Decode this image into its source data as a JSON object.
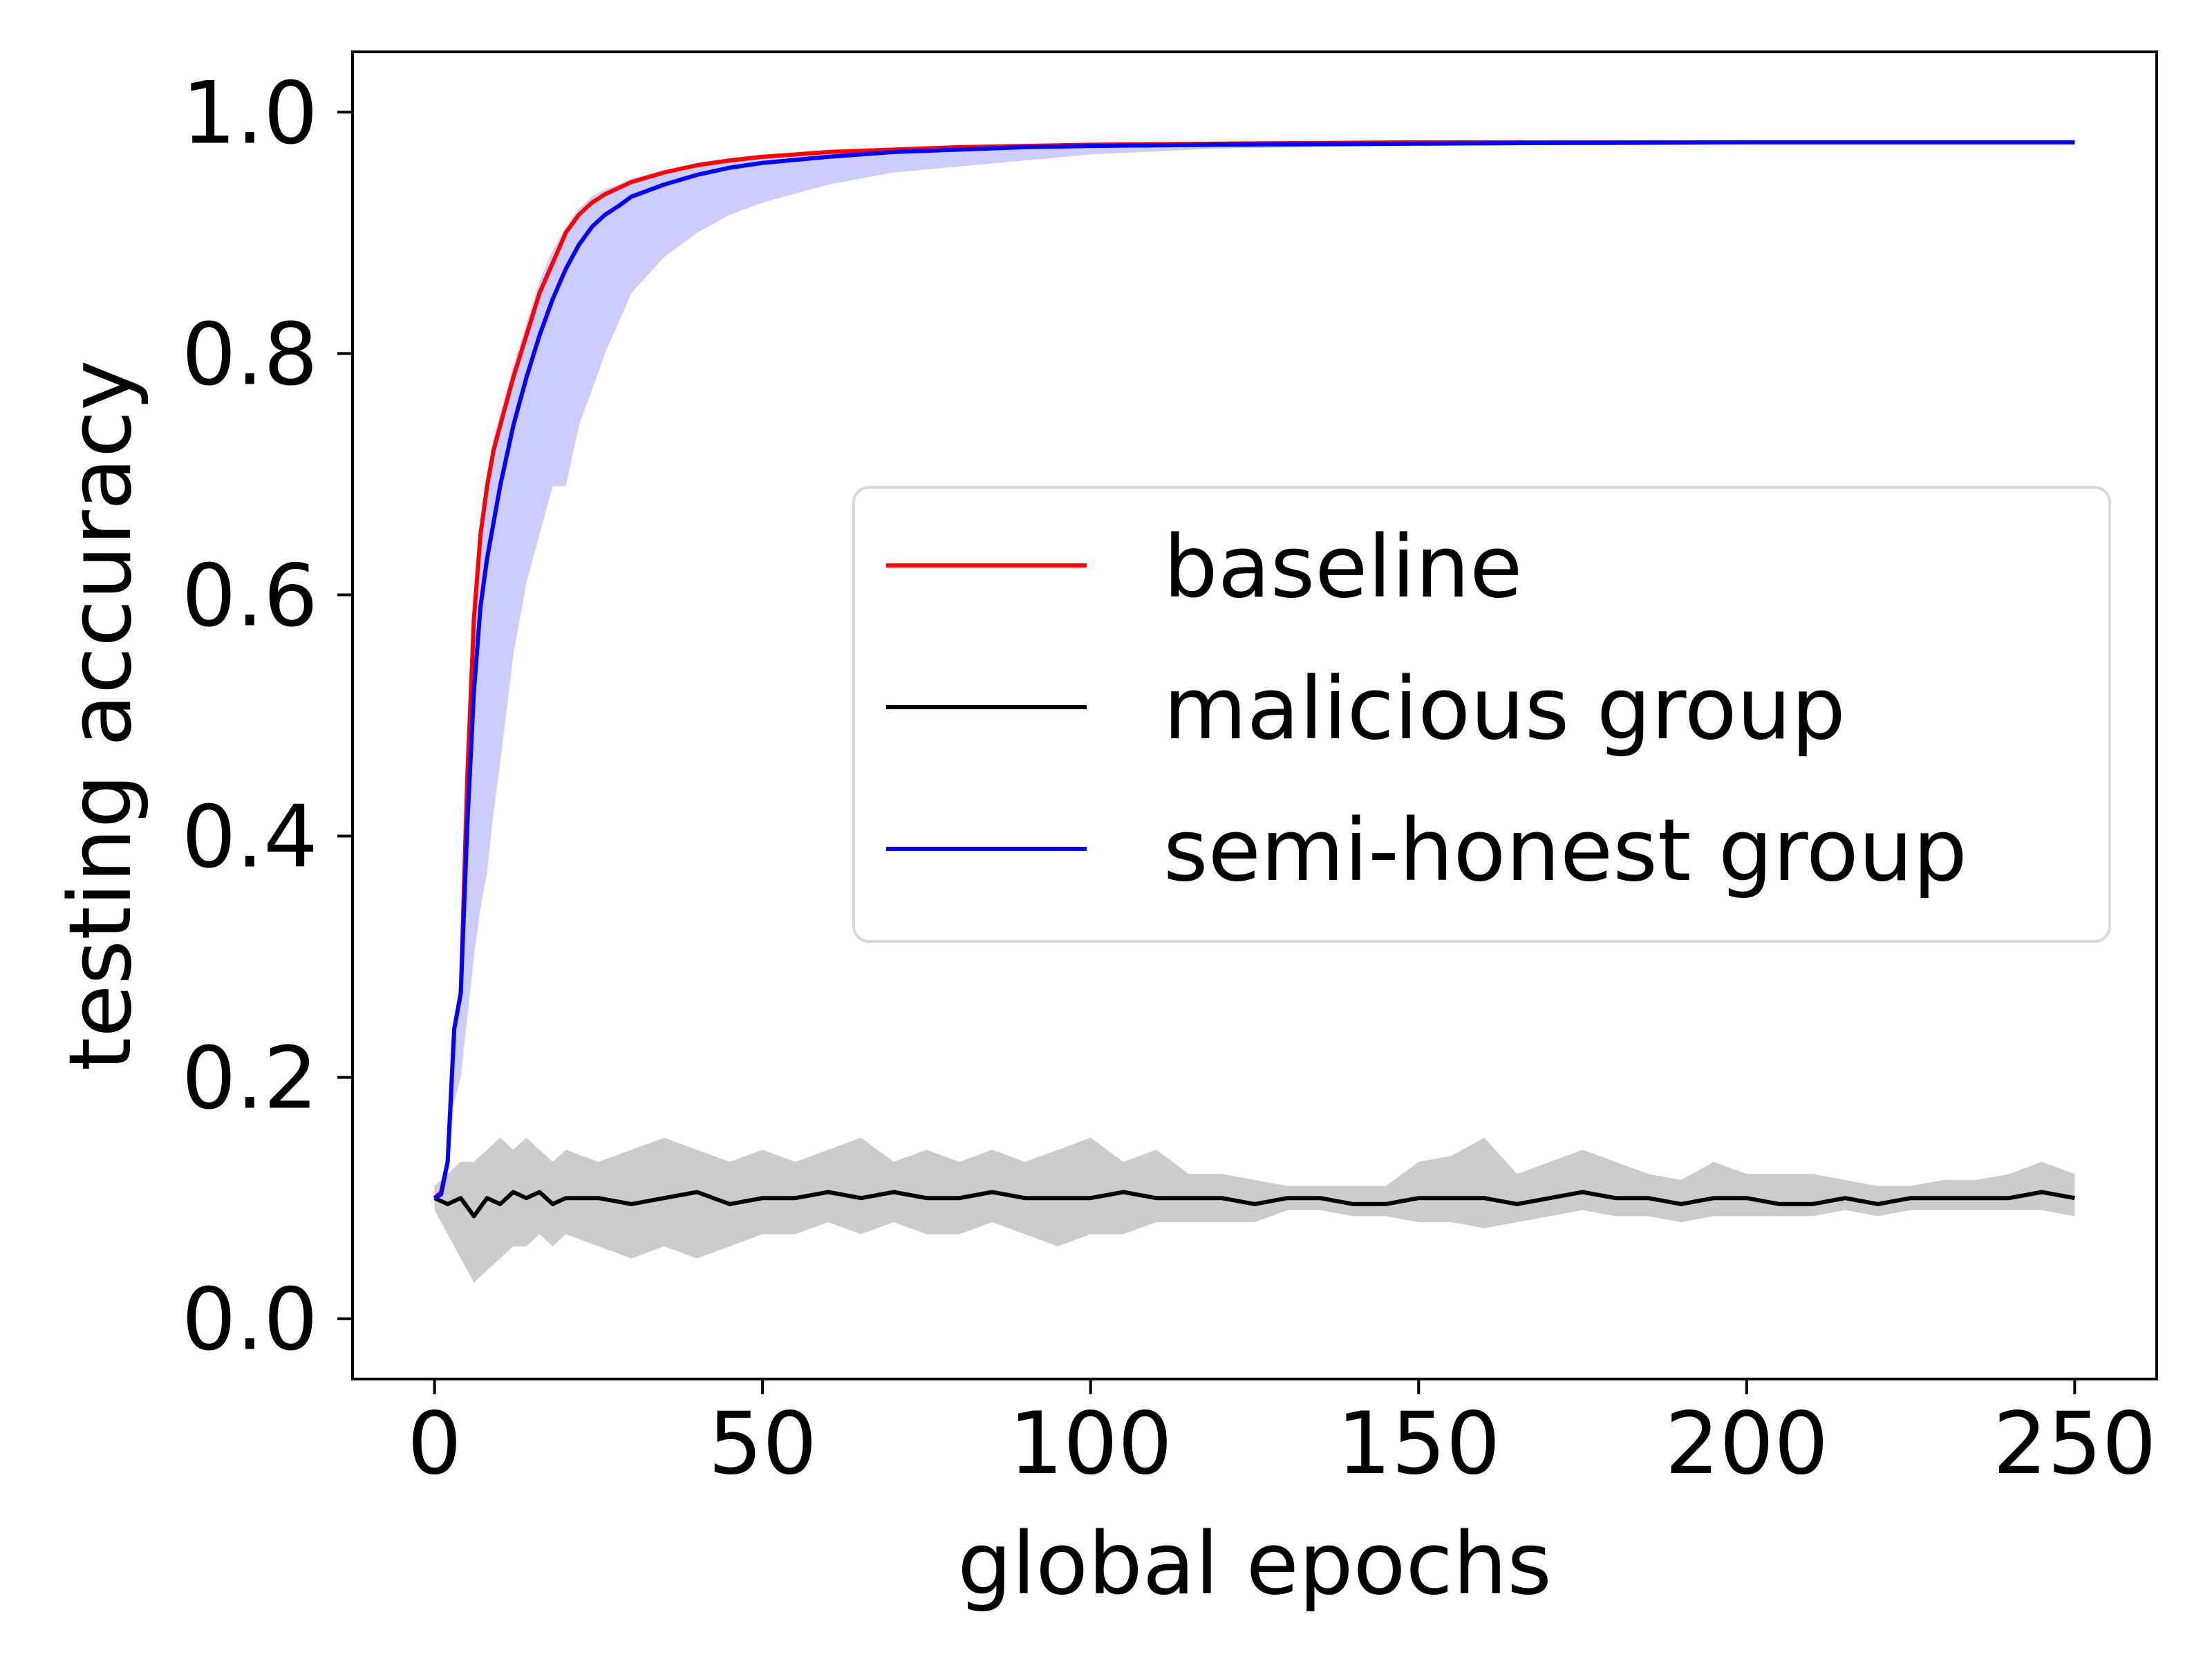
{
  "chart_data": {
    "type": "line",
    "title": "",
    "xlabel": "global epochs",
    "ylabel": "testing accuracy",
    "xlim": [
      -12.5,
      262.5
    ],
    "ylim": [
      -0.05,
      1.05
    ],
    "xticks": [
      0,
      50,
      100,
      150,
      200,
      250
    ],
    "yticks": [
      0.0,
      0.2,
      0.4,
      0.6,
      0.8,
      1.0
    ],
    "xtick_labels": [
      "0",
      "50",
      "100",
      "150",
      "200",
      "250"
    ],
    "ytick_labels": [
      "0.0",
      "0.2",
      "0.4",
      "0.6",
      "0.8",
      "1.0"
    ],
    "grid": false,
    "legend": {
      "location": "center-right",
      "entries": [
        "baseline",
        "malicious group",
        "semi-honest group"
      ]
    },
    "series": [
      {
        "name": "baseline",
        "color": "#ff0000",
        "x": [
          0,
          1,
          2,
          3,
          4,
          5,
          6,
          7,
          8,
          9,
          10,
          12,
          14,
          16,
          18,
          20,
          22,
          24,
          26,
          28,
          30,
          35,
          40,
          45,
          50,
          60,
          70,
          80,
          90,
          100,
          120,
          150,
          200,
          250
        ],
        "y": [
          0.1,
          0.105,
          0.13,
          0.24,
          0.27,
          0.45,
          0.58,
          0.65,
          0.69,
          0.72,
          0.74,
          0.78,
          0.815,
          0.85,
          0.875,
          0.9,
          0.915,
          0.925,
          0.932,
          0.937,
          0.942,
          0.95,
          0.956,
          0.96,
          0.963,
          0.967,
          0.969,
          0.971,
          0.972,
          0.973,
          0.974,
          0.975,
          0.975,
          0.975
        ]
      },
      {
        "name": "malicious group",
        "color": "#000000",
        "band_color": "#cccccc",
        "x": [
          0,
          2,
          4,
          6,
          8,
          10,
          12,
          14,
          16,
          18,
          20,
          25,
          30,
          35,
          40,
          45,
          50,
          55,
          60,
          65,
          70,
          75,
          80,
          85,
          90,
          95,
          100,
          105,
          110,
          115,
          120,
          125,
          130,
          135,
          140,
          145,
          150,
          155,
          160,
          165,
          170,
          175,
          180,
          185,
          190,
          195,
          200,
          205,
          210,
          215,
          220,
          225,
          230,
          235,
          240,
          245,
          250
        ],
        "y": [
          0.1,
          0.095,
          0.1,
          0.085,
          0.1,
          0.095,
          0.105,
          0.1,
          0.105,
          0.095,
          0.1,
          0.1,
          0.095,
          0.1,
          0.105,
          0.095,
          0.1,
          0.1,
          0.105,
          0.1,
          0.105,
          0.1,
          0.1,
          0.105,
          0.1,
          0.1,
          0.1,
          0.105,
          0.1,
          0.1,
          0.1,
          0.095,
          0.1,
          0.1,
          0.095,
          0.095,
          0.1,
          0.1,
          0.1,
          0.095,
          0.1,
          0.105,
          0.1,
          0.1,
          0.095,
          0.1,
          0.1,
          0.095,
          0.095,
          0.1,
          0.095,
          0.1,
          0.1,
          0.1,
          0.1,
          0.105,
          0.1
        ],
        "band_lower": [
          0.09,
          0.07,
          0.05,
          0.03,
          0.04,
          0.05,
          0.06,
          0.06,
          0.07,
          0.06,
          0.07,
          0.06,
          0.05,
          0.06,
          0.05,
          0.06,
          0.07,
          0.07,
          0.08,
          0.07,
          0.08,
          0.07,
          0.07,
          0.08,
          0.07,
          0.06,
          0.07,
          0.07,
          0.08,
          0.08,
          0.08,
          0.08,
          0.09,
          0.09,
          0.085,
          0.085,
          0.08,
          0.08,
          0.075,
          0.08,
          0.085,
          0.09,
          0.085,
          0.085,
          0.08,
          0.085,
          0.085,
          0.085,
          0.085,
          0.09,
          0.085,
          0.09,
          0.09,
          0.09,
          0.09,
          0.09,
          0.085
        ],
        "band_upper": [
          0.11,
          0.12,
          0.13,
          0.13,
          0.14,
          0.15,
          0.14,
          0.15,
          0.14,
          0.13,
          0.14,
          0.13,
          0.14,
          0.15,
          0.14,
          0.13,
          0.14,
          0.13,
          0.14,
          0.15,
          0.13,
          0.14,
          0.13,
          0.14,
          0.13,
          0.14,
          0.15,
          0.13,
          0.14,
          0.12,
          0.12,
          0.115,
          0.11,
          0.11,
          0.11,
          0.11,
          0.13,
          0.135,
          0.15,
          0.12,
          0.13,
          0.14,
          0.13,
          0.12,
          0.115,
          0.13,
          0.12,
          0.12,
          0.12,
          0.115,
          0.11,
          0.11,
          0.115,
          0.115,
          0.12,
          0.13,
          0.12
        ]
      },
      {
        "name": "semi-honest group",
        "color": "#0000ff",
        "band_color": "#ccccff",
        "x": [
          0,
          1,
          2,
          3,
          4,
          5,
          6,
          7,
          8,
          9,
          10,
          12,
          14,
          16,
          18,
          20,
          22,
          24,
          26,
          28,
          30,
          35,
          40,
          45,
          50,
          60,
          70,
          80,
          90,
          100,
          120,
          150,
          200,
          250
        ],
        "y": [
          0.1,
          0.103,
          0.13,
          0.24,
          0.27,
          0.41,
          0.52,
          0.59,
          0.63,
          0.66,
          0.69,
          0.74,
          0.78,
          0.815,
          0.845,
          0.87,
          0.89,
          0.905,
          0.915,
          0.922,
          0.93,
          0.94,
          0.948,
          0.954,
          0.958,
          0.963,
          0.967,
          0.969,
          0.971,
          0.972,
          0.973,
          0.974,
          0.975,
          0.975
        ],
        "band_lower": [
          0.095,
          0.1,
          0.12,
          0.18,
          0.2,
          0.25,
          0.3,
          0.34,
          0.37,
          0.42,
          0.46,
          0.55,
          0.61,
          0.65,
          0.69,
          0.69,
          0.74,
          0.77,
          0.8,
          0.825,
          0.85,
          0.88,
          0.9,
          0.915,
          0.925,
          0.94,
          0.95,
          0.955,
          0.96,
          0.965,
          0.97,
          0.972,
          0.974,
          0.975
        ],
        "band_upper": [
          0.105,
          0.11,
          0.14,
          0.25,
          0.28,
          0.46,
          0.59,
          0.66,
          0.7,
          0.73,
          0.75,
          0.79,
          0.825,
          0.86,
          0.885,
          0.905,
          0.92,
          0.93,
          0.936,
          0.94,
          0.945,
          0.952,
          0.958,
          0.962,
          0.965,
          0.968,
          0.97,
          0.972,
          0.973,
          0.974,
          0.975,
          0.976,
          0.976,
          0.976
        ]
      }
    ]
  }
}
